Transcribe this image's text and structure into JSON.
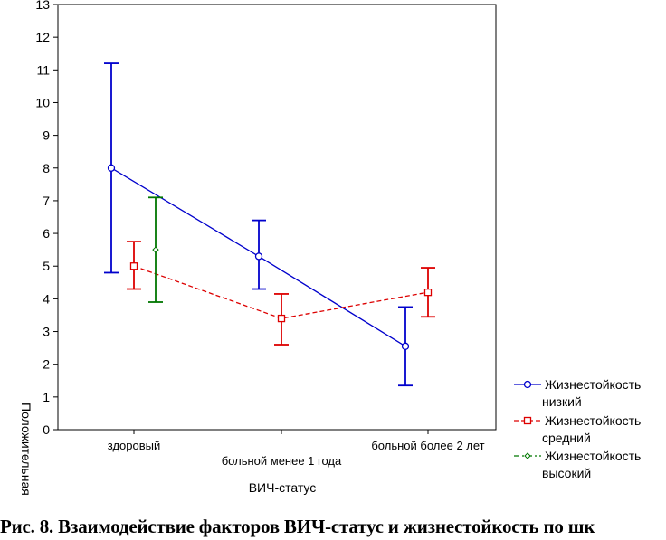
{
  "chart_data": {
    "type": "line",
    "xlabel": "ВИЧ-статус",
    "ylabel": "Положительная",
    "categories": [
      "здоровый",
      "больной менее 1 года",
      "больной более 2 лет"
    ],
    "ylim": [
      0,
      13
    ],
    "yticks": [
      0,
      1,
      2,
      3,
      4,
      5,
      6,
      7,
      8,
      9,
      10,
      11,
      12,
      13
    ],
    "grid": false,
    "legend_position": "right",
    "series": [
      {
        "name_line1": "Жизнестойкость",
        "name_line2": "низкий",
        "color": "#0000cc",
        "marker": "circle",
        "line_style": "solid",
        "values": [
          8.0,
          5.3,
          2.55
        ],
        "ci_low": [
          4.8,
          4.3,
          1.35
        ],
        "ci_high": [
          11.2,
          6.4,
          3.75
        ]
      },
      {
        "name_line1": "Жизнестойкость",
        "name_line2": "средний",
        "color": "#dd0000",
        "marker": "square",
        "line_style": "dashed",
        "values": [
          5.0,
          3.4,
          4.2
        ],
        "ci_low": [
          4.3,
          2.6,
          3.45
        ],
        "ci_high": [
          5.75,
          4.15,
          4.95
        ]
      },
      {
        "name_line1": "Жизнестойкость",
        "name_line2": "высокий",
        "color": "#007700",
        "marker": "diamond",
        "line_style": "dash-dot",
        "values": [
          5.5,
          null,
          null
        ],
        "ci_low": [
          3.9,
          null,
          null
        ],
        "ci_high": [
          7.1,
          null,
          null
        ]
      }
    ]
  },
  "caption": "Рис. 8. Взаимодействие факторов ВИЧ-статус и жизнестойкость по шк"
}
